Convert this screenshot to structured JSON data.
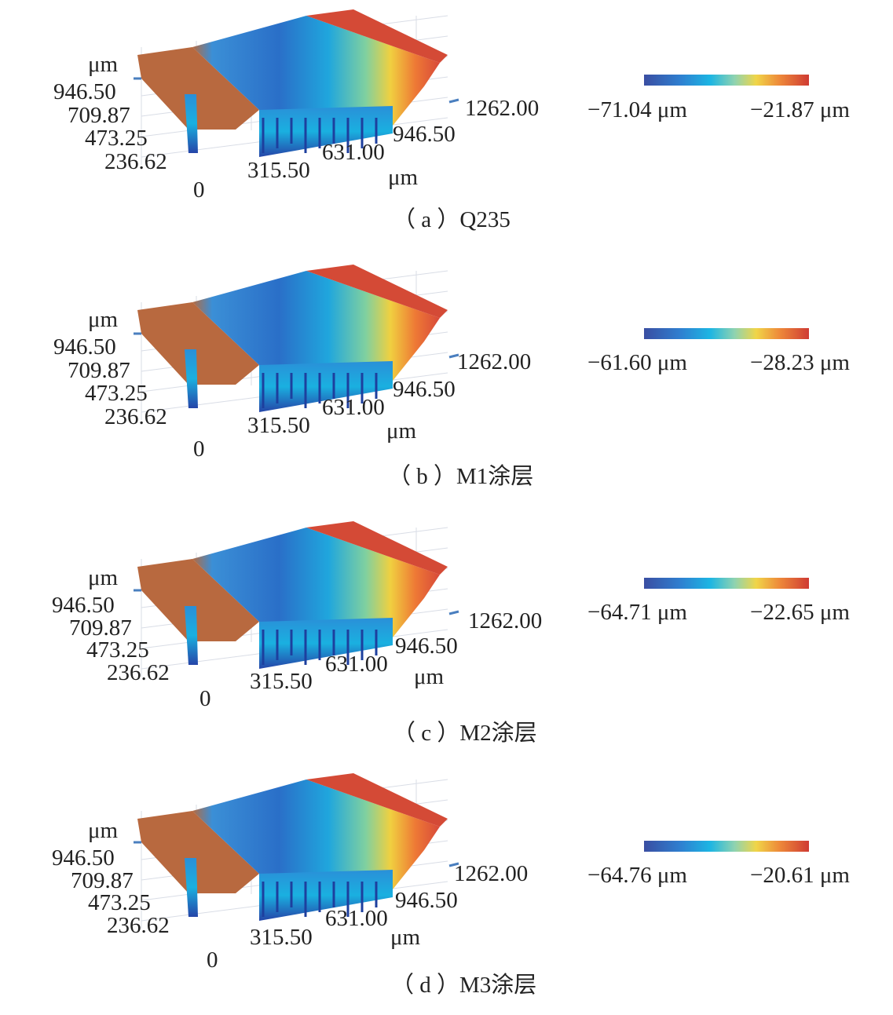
{
  "chart_data": [
    {
      "type": "surface3d",
      "caption": "（ a ）Q235",
      "z_unit": "μm",
      "y_ticks": [
        "946.50",
        "709.87",
        "473.25",
        "236.62"
      ],
      "origin": "0",
      "x_ticks": [
        "315.50",
        "631.00",
        "946.50"
      ],
      "x_unit": "μm",
      "depth_tick": "1262.00",
      "colorbar": {
        "min": "−71.04 μm",
        "max": "−21.87 μm"
      }
    },
    {
      "type": "surface3d",
      "caption": "（ b ）M1涂层",
      "z_unit": "μm",
      "y_ticks": [
        "946.50",
        "709.87",
        "473.25",
        "236.62"
      ],
      "origin": "0",
      "x_ticks": [
        "315.50",
        "631.00",
        "946.50"
      ],
      "x_unit": "μm",
      "depth_tick": "1262.00",
      "colorbar": {
        "min": "−61.60 μm",
        "max": "−28.23 μm"
      }
    },
    {
      "type": "surface3d",
      "caption": "（ c ）M2涂层",
      "z_unit": "μm",
      "y_ticks": [
        "946.50",
        "709.87",
        "473.25",
        "236.62"
      ],
      "origin": "0",
      "x_ticks": [
        "315.50",
        "631.00",
        "946.50"
      ],
      "x_unit": "μm",
      "depth_tick": "1262.00",
      "colorbar": {
        "min": "−64.71 μm",
        "max": "−22.65 μm"
      }
    },
    {
      "type": "surface3d",
      "caption": "（ d ）M3涂层",
      "z_unit": "μm",
      "y_ticks": [
        "946.50",
        "709.87",
        "473.25",
        "236.62"
      ],
      "origin": "0",
      "x_ticks": [
        "315.50",
        "631.00",
        "946.50"
      ],
      "x_unit": "μm",
      "depth_tick": "1262.00",
      "colorbar": {
        "min": "−64.76 μm",
        "max": "−20.61 μm"
      }
    }
  ]
}
